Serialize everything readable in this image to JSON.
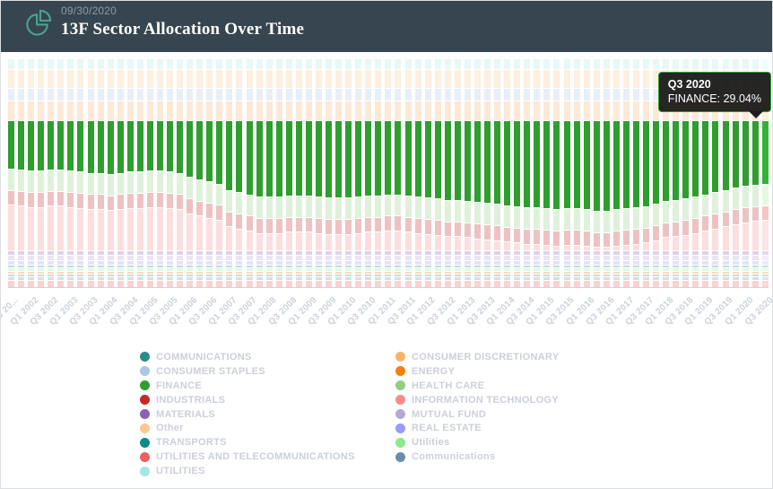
{
  "header": {
    "date": "09/30/2020",
    "title": "13F Sector Allocation Over Time",
    "bg_color": "#36454f",
    "icon_color": "#4da18f"
  },
  "tooltip": {
    "title": "Q3 2020",
    "line": "FINANCE: 29.04%",
    "series": "FINANCE",
    "value_pct": 29.04,
    "border_color": "#2f9e2f"
  },
  "chart_data": {
    "type": "bar",
    "variant": "stacked-percent-column",
    "title": "13F Sector Allocation Over Time",
    "x_range": [
      "Q3 2001",
      "Q3 2020"
    ],
    "ylim": [
      0,
      100
    ],
    "grid": false,
    "legend_position": "bottom",
    "highlighted_series": "FINANCE",
    "hovered_point": {
      "quarter": "Q3 2020",
      "series": "FINANCE",
      "value": 29.04
    },
    "x_tick_labels": [
      "Q3 20...",
      "Q1 2002",
      "Q3 2002",
      "Q1 2003",
      "Q3 2003",
      "Q1 2004",
      "Q3 2004",
      "Q1 2005",
      "Q3 2005",
      "Q1 2006",
      "Q3 2006",
      "Q1 2007",
      "Q3 2007",
      "Q1 2008",
      "Q3 2008",
      "Q1 2009",
      "Q3 2009",
      "Q1 2010",
      "Q3 2010",
      "Q1 2011",
      "Q3 2011",
      "Q1 2012",
      "Q3 2012",
      "Q1 2013",
      "Q3 2013",
      "Q1 2014",
      "Q3 2014",
      "Q1 2015",
      "Q3 2015",
      "Q1 2016",
      "Q3 2016",
      "Q1 2017",
      "Q3 2017",
      "Q1 2018",
      "Q3 2018",
      "Q1 2019",
      "Q3 2019",
      "Q1 2020",
      "Q3 2020"
    ],
    "note": "values are % of portfolio, estimated from pixels except hovered FINANCE Q3 2020 = 29.04; series listed top-to-bottom in stack order; non-highlighted series drawn faded",
    "series": [
      {
        "name": "UTILITIES",
        "color": "#a5e8e0",
        "values": 4.5
      },
      {
        "name": "Other",
        "color": "#fdc78f",
        "values": 8.5
      },
      {
        "name": "CONSUMER STAPLES",
        "color": "#aac7e8",
        "values": 5.5
      },
      {
        "name": "CONSUMER DISCRETIONARY",
        "color": "#fbb36a",
        "values": 8.5
      },
      {
        "name": "FINANCE",
        "color": "#2f9e2f",
        "highlight": true,
        "values": [
          22,
          22.5,
          23,
          23,
          22.5,
          22.5,
          23,
          23.5,
          24,
          24,
          24.5,
          24,
          23.5,
          23.5,
          23,
          23,
          23.5,
          24,
          26,
          27,
          28,
          29,
          32,
          33,
          34,
          35,
          35,
          35,
          34.5,
          34.5,
          34.5,
          35,
          35.5,
          35.5,
          35.5,
          35,
          34.5,
          34.5,
          34,
          34,
          34.5,
          35,
          35.5,
          36,
          36.5,
          36.5,
          37,
          37.5,
          38,
          38.5,
          39,
          39.5,
          40,
          40,
          40.5,
          41,
          40.5,
          40.5,
          41,
          41.5,
          41.5,
          41,
          40.5,
          40,
          39.5,
          38.5,
          37,
          36.5,
          36,
          35,
          34,
          33,
          32,
          31,
          30,
          29.5,
          29.04
        ]
      },
      {
        "name": "HEALTH CARE",
        "color": "#8fd07f",
        "values": 9.5
      },
      {
        "name": "INDUSTRIALS",
        "color": "#c62828",
        "values": 6.5
      },
      {
        "name": "INFORMATION TECHNOLOGY",
        "color": "#fb8c8c",
        "values": [
          20.5,
          20,
          19.5,
          19.5,
          20,
          20,
          19.5,
          19,
          18.5,
          18.5,
          18,
          18.5,
          19,
          19,
          19.5,
          19.5,
          19,
          18.5,
          16.5,
          15.5,
          14.5,
          13.5,
          10.5,
          9.5,
          8.5,
          7.5,
          7.5,
          7.5,
          8,
          8,
          8,
          7.5,
          7,
          7,
          7,
          7.5,
          8,
          8,
          8.5,
          8.5,
          8,
          7.5,
          7,
          6.5,
          6,
          6,
          5.5,
          5,
          4.5,
          4,
          3.5,
          3,
          2.5,
          2.5,
          2,
          1.5,
          2,
          2,
          1.5,
          1,
          1,
          1.5,
          2,
          2.5,
          3,
          4,
          5.5,
          6,
          6.5,
          7.5,
          8.5,
          9.5,
          10.5,
          11.5,
          12.5,
          13,
          13.46
        ]
      },
      {
        "name": "MATERIALS",
        "color": "#8d5fb8",
        "values": 2
      },
      {
        "name": "MUTUAL FUND",
        "color": "#b7a6d8",
        "values": 2
      },
      {
        "name": "REAL ESTATE",
        "color": "#9a9af8",
        "values": 1.5
      },
      {
        "name": "TRANSPORTS",
        "color": "#0e8c8c",
        "values": 1
      },
      {
        "name": "Utilities",
        "color": "#8bea8b",
        "values": 1
      },
      {
        "name": "ENERGY",
        "color": "#fa7d0e",
        "values": 1
      },
      {
        "name": "COMMUNICATIONS",
        "color": "#2e8b8b",
        "values": 1
      },
      {
        "name": "Communications",
        "color": "#6b8cab",
        "values": 1
      },
      {
        "name": "UTILITIES AND TELECOMMUNICATIONS",
        "color": "#ef5f5f",
        "values": 3
      }
    ]
  },
  "legend": {
    "columns": [
      [
        {
          "label": "COMMUNICATIONS",
          "color": "#2e8b8b"
        },
        {
          "label": "CONSUMER STAPLES",
          "color": "#aac7e8"
        },
        {
          "label": "FINANCE",
          "color": "#2f9e2f"
        },
        {
          "label": "INDUSTRIALS",
          "color": "#c62828"
        },
        {
          "label": "MATERIALS",
          "color": "#8d5fb8"
        },
        {
          "label": "Other",
          "color": "#fdc78f"
        },
        {
          "label": "TRANSPORTS",
          "color": "#0e8c8c"
        },
        {
          "label": "UTILITIES AND TELECOMMUNICATIONS",
          "color": "#ef5f5f"
        },
        {
          "label": "UTILITIES",
          "color": "#a5e8e0"
        }
      ],
      [
        {
          "label": "CONSUMER DISCRETIONARY",
          "color": "#fbb36a"
        },
        {
          "label": "ENERGY",
          "color": "#fa7d0e"
        },
        {
          "label": "HEALTH CARE",
          "color": "#8fd07f"
        },
        {
          "label": "INFORMATION TECHNOLOGY",
          "color": "#fb8c8c"
        },
        {
          "label": "MUTUAL FUND",
          "color": "#b7a6d8"
        },
        {
          "label": "REAL ESTATE",
          "color": "#9a9af8"
        },
        {
          "label": "Utilities",
          "color": "#8bea8b"
        },
        {
          "label": "Communications",
          "color": "#6b8cab"
        }
      ]
    ]
  }
}
